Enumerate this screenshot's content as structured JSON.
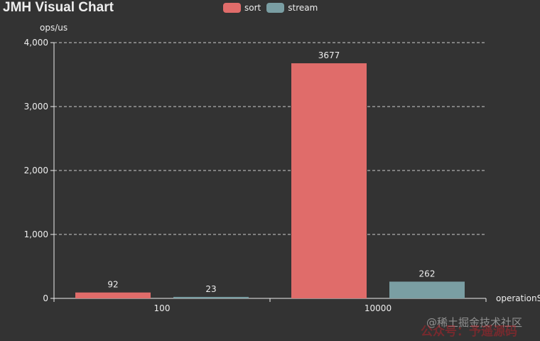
{
  "chart_data": {
    "type": "bar",
    "title": "JMH Visual Chart",
    "ylabel": "ops/us",
    "xlabel": "operationS",
    "categories": [
      "100",
      "10000"
    ],
    "series": [
      {
        "name": "sort",
        "values": [
          92,
          3677
        ],
        "color": "#e06c6a"
      },
      {
        "name": "stream",
        "values": [
          23,
          262
        ],
        "color": "#7a9ea3"
      }
    ],
    "ylim": [
      0,
      4000
    ],
    "yticks": [
      "0",
      "1,000",
      "2,000",
      "3,000",
      "4,000"
    ],
    "grid": true,
    "legend": "top-center"
  },
  "watermark": {
    "line1": "@稀土掘金技术社区",
    "line2": "公众号：予遥源码"
  }
}
